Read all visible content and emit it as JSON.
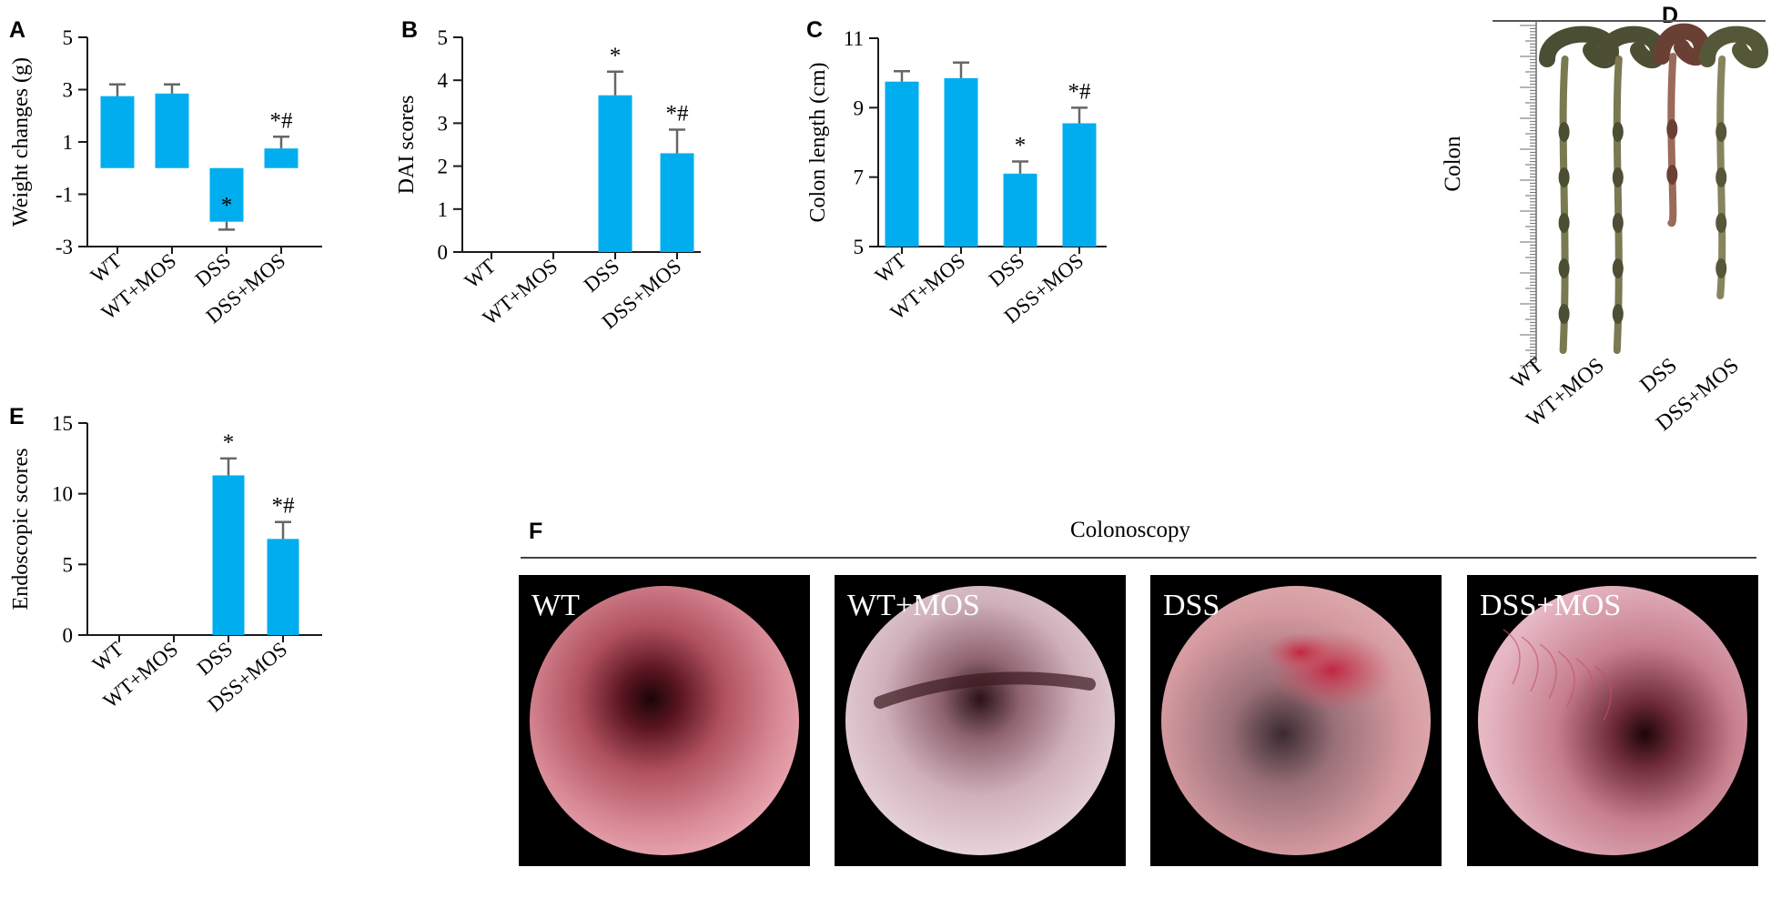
{
  "colors": {
    "bar": "#00aeef",
    "axis": "#1a1a1a",
    "ruler": "#6b6b6b",
    "endoscope_bg": "#000000"
  },
  "chart_data": [
    {
      "panel": "A",
      "type": "bar",
      "categories": [
        "WT",
        "WT+MOS",
        "DSS",
        "DSS+MOS"
      ],
      "values": [
        2.75,
        2.85,
        -2.05,
        0.75
      ],
      "errors": [
        0.45,
        0.35,
        0.3,
        0.45
      ],
      "annotations": [
        "",
        "",
        "*",
        "*#"
      ],
      "ylabel": "Weight changes (g)",
      "ylim": [
        -3,
        5
      ],
      "yticks": [
        -3,
        -1,
        1,
        3,
        5
      ],
      "ytick_labels": [
        "-3",
        "-1",
        "1",
        "3",
        "5"
      ]
    },
    {
      "panel": "B",
      "type": "bar",
      "categories": [
        "WT",
        "WT+MOS",
        "DSS",
        "DSS+MOS"
      ],
      "values": [
        0,
        0,
        3.65,
        2.3
      ],
      "errors": [
        0,
        0,
        0.55,
        0.55
      ],
      "annotations": [
        "",
        "",
        "*",
        "*#"
      ],
      "ylabel": "DAI scores",
      "ylim": [
        0,
        5
      ],
      "yticks": [
        0,
        1,
        2,
        3,
        4,
        5
      ],
      "ytick_labels": [
        "0",
        "1",
        "2",
        "3",
        "4",
        "5"
      ]
    },
    {
      "panel": "C",
      "type": "bar",
      "categories": [
        "WT",
        "WT+MOS",
        "DSS",
        "DSS+MOS"
      ],
      "values": [
        9.75,
        9.85,
        7.1,
        8.55
      ],
      "errors": [
        0.3,
        0.45,
        0.35,
        0.45
      ],
      "annotations": [
        "",
        "",
        "*",
        "*#"
      ],
      "ylabel": "Colon length (cm)",
      "ylim": [
        5,
        11
      ],
      "yticks": [
        5,
        7,
        9,
        11
      ],
      "ytick_labels": [
        "5",
        "7",
        "9",
        "11"
      ]
    },
    {
      "panel": "E",
      "type": "bar",
      "categories": [
        "WT",
        "WT+MOS",
        "DSS",
        "DSS+MOS"
      ],
      "values": [
        0,
        0,
        11.3,
        6.8
      ],
      "errors": [
        0,
        0,
        1.2,
        1.2
      ],
      "annotations": [
        "",
        "",
        "*",
        "*#"
      ],
      "ylabel": "Endoscopic scores",
      "ylim": [
        0,
        15
      ],
      "yticks": [
        0,
        5,
        10,
        15
      ],
      "ytick_labels": [
        "0",
        "5",
        "10",
        "15"
      ]
    }
  ],
  "panel_d": {
    "letter": "D",
    "side_label": "Colon",
    "labels": [
      "WT",
      "WT+MOS",
      "DSS",
      "DSS+MOS"
    ]
  },
  "panel_f": {
    "letter": "F",
    "title": "Colonoscopy",
    "images": [
      {
        "label": "WT"
      },
      {
        "label": "WT+MOS"
      },
      {
        "label": "DSS"
      },
      {
        "label": "DSS+MOS"
      }
    ]
  }
}
